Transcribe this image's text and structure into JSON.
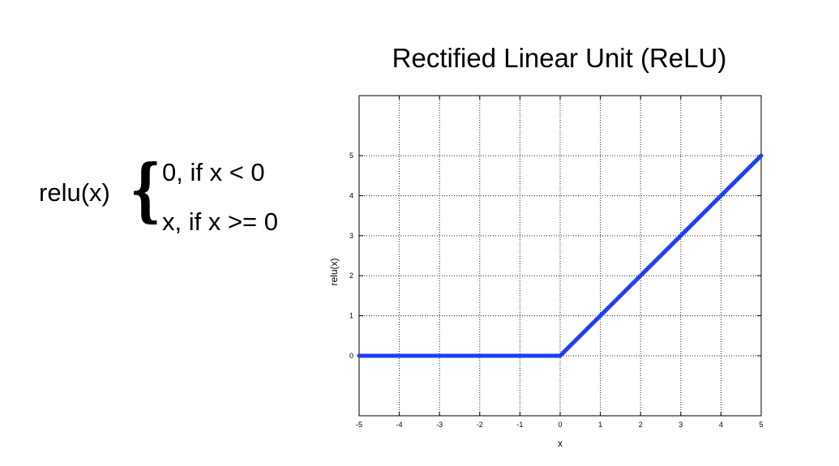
{
  "formula": {
    "name": "relu(x)",
    "cases": [
      "0, if x < 0",
      "x, if x >= 0"
    ]
  },
  "chart_data": {
    "type": "line",
    "title": "Rectified Linear Unit (ReLU)",
    "xlabel": "x",
    "ylabel": "relu(x)",
    "xlim": [
      -5,
      5
    ],
    "ylim": [
      -1.5,
      6.5
    ],
    "xticks": [
      -5,
      -4,
      -3,
      -2,
      -1,
      0,
      1,
      2,
      3,
      4,
      5
    ],
    "yticks": [
      0,
      1,
      2,
      3,
      4,
      5
    ],
    "grid": true,
    "series": [
      {
        "color": "#1f3ff0",
        "x": [
          -5,
          0,
          1,
          2,
          3,
          4,
          5
        ],
        "y": [
          0,
          0,
          1,
          2,
          3,
          4,
          5
        ]
      }
    ]
  }
}
